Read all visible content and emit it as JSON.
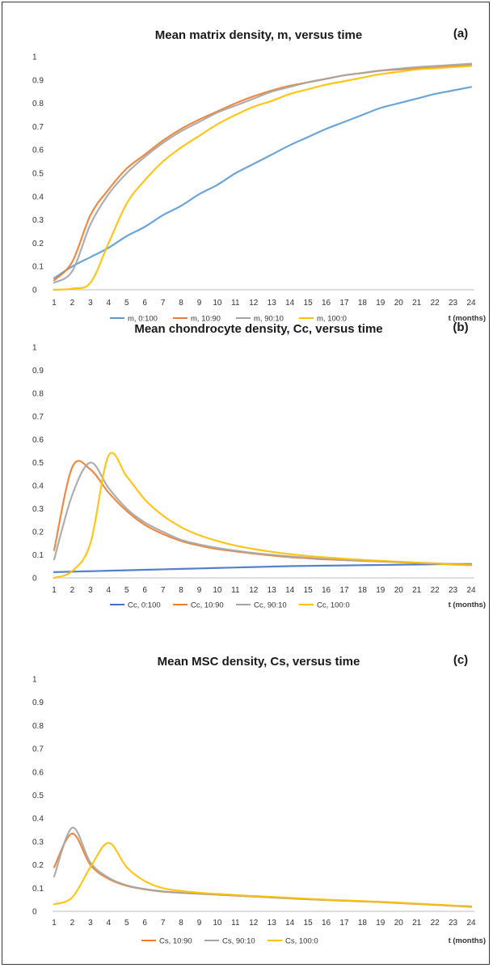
{
  "chart_data": [
    {
      "type": "line",
      "title": "Mean matrix density, m, versus time",
      "panel_label": "(a)",
      "xlabel": "t (months)",
      "ylabel": "",
      "ylim": [
        0,
        1
      ],
      "yticks": [
        "0",
        "0.1",
        "0.2",
        "0.3",
        "0.4",
        "0.5",
        "0.6",
        "0.7",
        "0.8",
        "0.9",
        "1"
      ],
      "x": [
        1,
        2,
        3,
        4,
        5,
        6,
        7,
        8,
        9,
        10,
        11,
        12,
        13,
        14,
        15,
        16,
        17,
        18,
        19,
        20,
        21,
        22,
        23,
        24
      ],
      "grid": false,
      "legend_position": "bottom",
      "series": [
        {
          "name": "m, 0:100",
          "color": "#5b9bd5",
          "values": [
            0.05,
            0.1,
            0.14,
            0.18,
            0.23,
            0.27,
            0.32,
            0.36,
            0.41,
            0.45,
            0.5,
            0.54,
            0.58,
            0.62,
            0.655,
            0.69,
            0.72,
            0.75,
            0.78,
            0.8,
            0.82,
            0.84,
            0.855,
            0.87
          ]
        },
        {
          "name": "m, 10:90",
          "color": "#ed7d31",
          "values": [
            0.04,
            0.12,
            0.32,
            0.43,
            0.52,
            0.58,
            0.64,
            0.69,
            0.73,
            0.765,
            0.8,
            0.83,
            0.855,
            0.875,
            0.89,
            0.905,
            0.92,
            0.93,
            0.94,
            0.945,
            0.95,
            0.955,
            0.96,
            0.965
          ]
        },
        {
          "name": "m, 90:10",
          "color": "#a5a5a5",
          "values": [
            0.03,
            0.08,
            0.28,
            0.41,
            0.5,
            0.57,
            0.63,
            0.68,
            0.72,
            0.76,
            0.79,
            0.82,
            0.85,
            0.87,
            0.89,
            0.905,
            0.92,
            0.93,
            0.94,
            0.948,
            0.955,
            0.96,
            0.965,
            0.97
          ]
        },
        {
          "name": "m, 100:0",
          "color": "#ffc000",
          "values": [
            0.0,
            0.005,
            0.03,
            0.2,
            0.37,
            0.47,
            0.55,
            0.61,
            0.66,
            0.71,
            0.75,
            0.785,
            0.81,
            0.84,
            0.86,
            0.88,
            0.895,
            0.91,
            0.925,
            0.935,
            0.945,
            0.95,
            0.955,
            0.96
          ]
        }
      ]
    },
    {
      "type": "line",
      "title": "Mean chondrocyte density, Cc, versus time",
      "panel_label": "(b)",
      "xlabel": "t (months)",
      "ylabel": "",
      "ylim": [
        0,
        1
      ],
      "yticks": [
        "0",
        "0.1",
        "0.2",
        "0.3",
        "0.4",
        "0.5",
        "0.6",
        "0.7",
        "0.8",
        "0.9",
        "1"
      ],
      "x": [
        1,
        2,
        3,
        4,
        5,
        6,
        7,
        8,
        9,
        10,
        11,
        12,
        13,
        14,
        15,
        16,
        17,
        18,
        19,
        20,
        21,
        22,
        23,
        24
      ],
      "grid": false,
      "legend_position": "bottom",
      "series": [
        {
          "name": "Cc, 0:100",
          "color": "#4472c4",
          "values": [
            0.025,
            0.027,
            0.029,
            0.031,
            0.033,
            0.035,
            0.037,
            0.039,
            0.041,
            0.043,
            0.045,
            0.047,
            0.049,
            0.051,
            0.052,
            0.053,
            0.054,
            0.055,
            0.056,
            0.057,
            0.058,
            0.059,
            0.06,
            0.06
          ]
        },
        {
          "name": "Cc, 10:90",
          "color": "#ed7d31",
          "values": [
            0.12,
            0.48,
            0.47,
            0.37,
            0.29,
            0.23,
            0.19,
            0.16,
            0.14,
            0.125,
            0.115,
            0.105,
            0.097,
            0.09,
            0.085,
            0.08,
            0.077,
            0.074,
            0.071,
            0.068,
            0.065,
            0.062,
            0.058,
            0.055
          ]
        },
        {
          "name": "Cc, 90:10",
          "color": "#a5a5a5",
          "values": [
            0.08,
            0.36,
            0.5,
            0.39,
            0.3,
            0.24,
            0.2,
            0.165,
            0.145,
            0.13,
            0.118,
            0.108,
            0.1,
            0.093,
            0.087,
            0.082,
            0.078,
            0.075,
            0.072,
            0.069,
            0.066,
            0.063,
            0.06,
            0.058
          ]
        },
        {
          "name": "Cc, 100:0",
          "color": "#ffc000",
          "values": [
            0.0,
            0.03,
            0.15,
            0.53,
            0.44,
            0.34,
            0.27,
            0.22,
            0.185,
            0.16,
            0.14,
            0.125,
            0.113,
            0.103,
            0.095,
            0.089,
            0.083,
            0.078,
            0.074,
            0.07,
            0.066,
            0.062,
            0.058,
            0.055
          ]
        }
      ]
    },
    {
      "type": "line",
      "title": "Mean MSC density, Cs, versus time",
      "panel_label": "(c)",
      "xlabel": "t (months)",
      "ylabel": "",
      "ylim": [
        0,
        1
      ],
      "yticks": [
        "0",
        "0.1",
        "0.2",
        "0.3",
        "0.4",
        "0.5",
        "0.6",
        "0.7",
        "0.8",
        "0.9",
        "1"
      ],
      "x": [
        1,
        2,
        3,
        4,
        5,
        6,
        7,
        8,
        9,
        10,
        11,
        12,
        13,
        14,
        15,
        16,
        17,
        18,
        19,
        20,
        21,
        22,
        23,
        24
      ],
      "grid": false,
      "legend_position": "bottom",
      "series": [
        {
          "name": "Cs, 10:90",
          "color": "#ed7d31",
          "values": [
            0.19,
            0.335,
            0.2,
            0.14,
            0.11,
            0.095,
            0.085,
            0.08,
            0.076,
            0.072,
            0.068,
            0.064,
            0.06,
            0.056,
            0.052,
            0.049,
            0.046,
            0.043,
            0.04,
            0.036,
            0.032,
            0.028,
            0.024,
            0.02
          ]
        },
        {
          "name": "Cs, 90:10",
          "color": "#a5a5a5",
          "values": [
            0.15,
            0.36,
            0.21,
            0.145,
            0.112,
            0.096,
            0.086,
            0.08,
            0.076,
            0.072,
            0.068,
            0.064,
            0.06,
            0.056,
            0.052,
            0.049,
            0.046,
            0.043,
            0.04,
            0.036,
            0.032,
            0.028,
            0.024,
            0.02
          ]
        },
        {
          "name": "Cs, 100:0",
          "color": "#ffc000",
          "values": [
            0.03,
            0.06,
            0.19,
            0.295,
            0.19,
            0.13,
            0.1,
            0.088,
            0.08,
            0.075,
            0.07,
            0.066,
            0.062,
            0.058,
            0.054,
            0.05,
            0.047,
            0.044,
            0.041,
            0.037,
            0.033,
            0.029,
            0.025,
            0.022
          ]
        }
      ]
    }
  ]
}
